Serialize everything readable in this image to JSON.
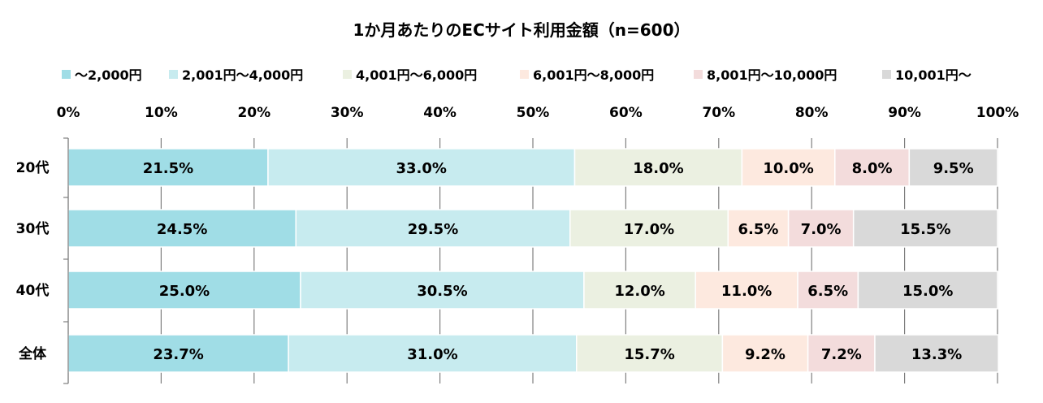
{
  "chart_data": {
    "type": "bar",
    "orientation": "horizontal",
    "stacked": "percent",
    "title": "1か月あたりのECサイト利用金額（n=600）",
    "categories": [
      "20代",
      "30代",
      "40代",
      "全体"
    ],
    "series": [
      {
        "name": "〜2,000円",
        "color": "#a0dde6",
        "values": [
          21.5,
          24.5,
          25.0,
          23.7
        ]
      },
      {
        "name": "2,001円〜4,000円",
        "color": "#c7ebef",
        "values": [
          33.0,
          29.5,
          30.5,
          31.0
        ]
      },
      {
        "name": "4,001円〜6,000円",
        "color": "#ebf0e1",
        "values": [
          18.0,
          17.0,
          12.0,
          15.7
        ]
      },
      {
        "name": "6,001円〜8,000円",
        "color": "#fde9df",
        "values": [
          10.0,
          6.5,
          11.0,
          9.2
        ]
      },
      {
        "name": "8,001円〜10,000円",
        "color": "#f3dcdc",
        "values": [
          8.0,
          7.0,
          6.5,
          7.2
        ]
      },
      {
        "name": "10,001円〜",
        "color": "#d9d9d9",
        "values": [
          9.5,
          15.5,
          15.0,
          13.3
        ]
      }
    ],
    "xticks": [
      "0%",
      "10%",
      "20%",
      "30%",
      "40%",
      "50%",
      "60%",
      "70%",
      "80%",
      "90%",
      "100%"
    ],
    "xlim": [
      0,
      100
    ],
    "grid": true,
    "legend": "top",
    "value_label_format": "0.0%"
  }
}
